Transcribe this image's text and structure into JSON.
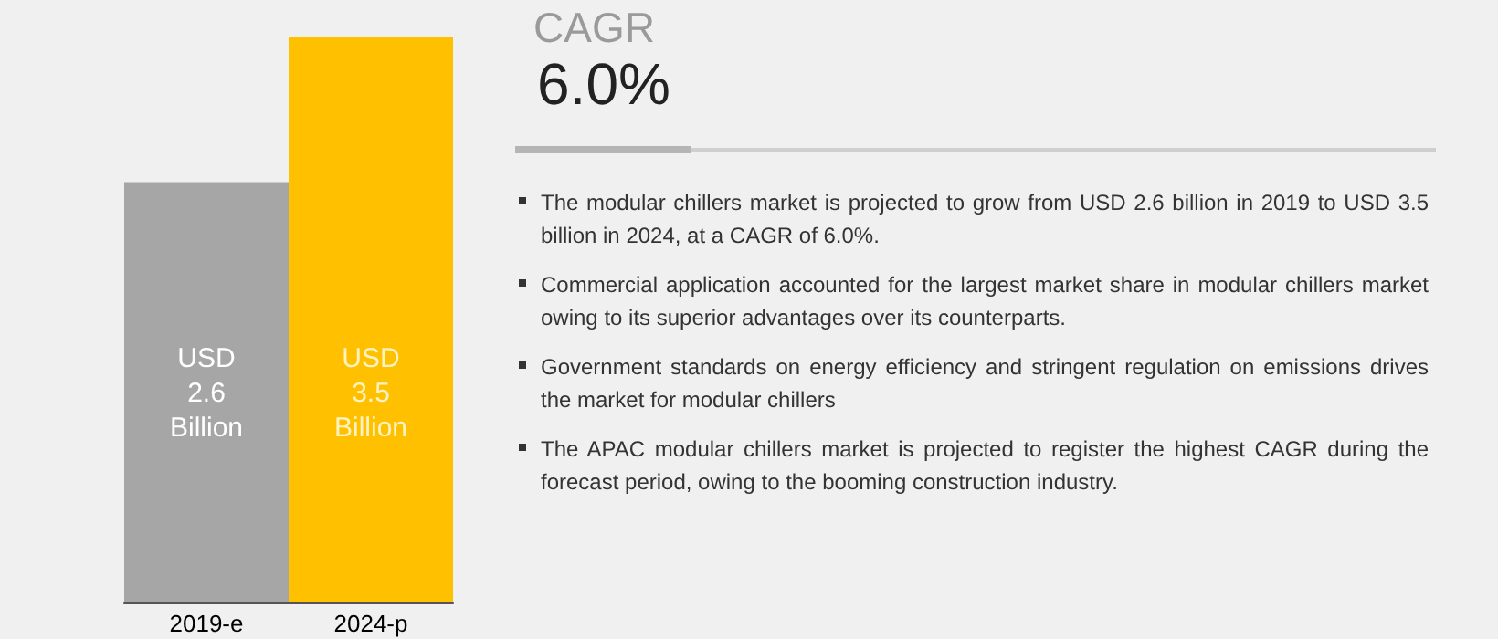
{
  "chart_data": {
    "type": "bar",
    "categories": [
      "2019-e",
      "2024-p"
    ],
    "values": [
      2.6,
      3.5
    ],
    "colors": [
      "#a6a6a6",
      "#ffc000"
    ],
    "value_labels": [
      "USD\n2.6\nBillion",
      "USD\n3.5\nBillion"
    ],
    "annotations": [
      "CAGR",
      "6.0%",
      "The modular chillers market is projected to grow from USD 2.6 billion in 2019 to USD 3.5 billion in 2024, at a CAGR of 6.0%.",
      "Commercial application accounted for the largest market share in modular chillers market owing to its superior advantages over its counterparts.",
      "Government standards on energy efficiency and stringent regulation on emissions drives the market for modular chillers",
      "The APAC modular chillers market is projected to register the highest CAGR during the forecast period, owing to the booming construction industry."
    ]
  }
}
